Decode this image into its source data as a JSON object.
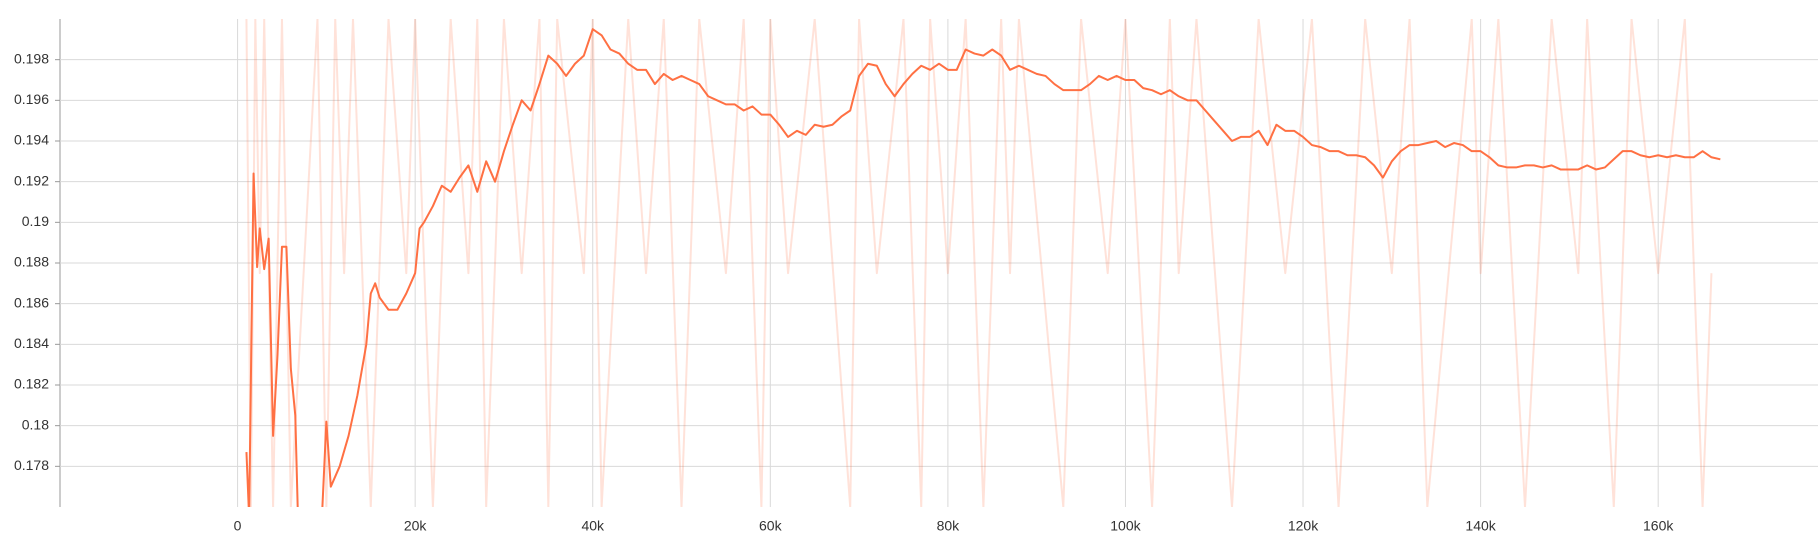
{
  "chart_data": {
    "type": "line",
    "xlim": [
      -20000,
      178000
    ],
    "ylim": [
      0.176,
      0.2
    ],
    "xticks": [
      {
        "value": 0,
        "label": "0"
      },
      {
        "value": 20000,
        "label": "20k"
      },
      {
        "value": 40000,
        "label": "40k"
      },
      {
        "value": 60000,
        "label": "60k"
      },
      {
        "value": 80000,
        "label": "80k"
      },
      {
        "value": 100000,
        "label": "100k"
      },
      {
        "value": 120000,
        "label": "120k"
      },
      {
        "value": 140000,
        "label": "140k"
      },
      {
        "value": 160000,
        "label": "160k"
      }
    ],
    "yticks": [
      0.178,
      0.18,
      0.182,
      0.184,
      0.186,
      0.188,
      0.19,
      0.192,
      0.194,
      0.196,
      0.198
    ],
    "grid": true,
    "series": [
      {
        "color": "#ff7043",
        "opacity": 0.2,
        "x": [
          1000,
          1500,
          2000,
          2500,
          3000,
          4000,
          5000,
          6000,
          9000,
          10000,
          11000,
          12000,
          13000,
          15000,
          17000,
          19000,
          20000,
          22000,
          24000,
          26000,
          27000,
          28000,
          30000,
          32000,
          34000,
          35000,
          36000,
          39000,
          40000,
          41000,
          44000,
          46000,
          48000,
          50000,
          52000,
          55000,
          57000,
          59000,
          60000,
          62000,
          65000,
          69000,
          70000,
          72000,
          75000,
          77000,
          78000,
          80000,
          82000,
          84000,
          86000,
          87000,
          88000,
          93000,
          95000,
          98000,
          100000,
          103000,
          105000,
          106000,
          108000,
          112000,
          115000,
          118000,
          121000,
          124000,
          127000,
          130000,
          132000,
          134000,
          139000,
          140000,
          142000,
          145000,
          148000,
          151000,
          152000,
          155000,
          157000,
          160000,
          163000,
          165000,
          166000
        ],
        "values": [
          0.2,
          0.176,
          0.2,
          0.1875,
          0.2,
          0.176,
          0.2,
          0.176,
          0.2,
          0.176,
          0.2,
          0.1875,
          0.2,
          0.176,
          0.2,
          0.1875,
          0.2,
          0.176,
          0.2,
          0.1875,
          0.2,
          0.176,
          0.2,
          0.1875,
          0.2,
          0.176,
          0.2,
          0.1875,
          0.2,
          0.176,
          0.2,
          0.1875,
          0.2,
          0.176,
          0.2,
          0.1875,
          0.2,
          0.176,
          0.2,
          0.1875,
          0.2,
          0.176,
          0.2,
          0.1875,
          0.2,
          0.176,
          0.2,
          0.1875,
          0.2,
          0.176,
          0.2,
          0.1875,
          0.2,
          0.176,
          0.2,
          0.1875,
          0.2,
          0.176,
          0.2,
          0.1875,
          0.2,
          0.176,
          0.2,
          0.1875,
          0.2,
          0.176,
          0.2,
          0.1875,
          0.2,
          0.176,
          0.2,
          0.1875,
          0.2,
          0.176,
          0.2,
          0.1875,
          0.2,
          0.176,
          0.2,
          0.1875,
          0.2,
          0.176,
          0.1875
        ]
      },
      {
        "color": "#ff7043",
        "opacity": 1,
        "x": [
          1000,
          1300,
          1800,
          2200,
          2500,
          3000,
          3500,
          4000,
          4500,
          5000,
          5500,
          6000,
          6500,
          6800,
          9500,
          10000,
          10500,
          11500,
          12500,
          13500,
          14500,
          15000,
          15500,
          16000,
          17000,
          18000,
          19000,
          20000,
          20500,
          21000,
          22000,
          23000,
          24000,
          25000,
          26000,
          27000,
          28000,
          29000,
          30000,
          31000,
          32000,
          33000,
          34000,
          35000,
          36000,
          37000,
          38000,
          39000,
          40000,
          41000,
          42000,
          43000,
          44000,
          45000,
          46000,
          47000,
          48000,
          49000,
          50000,
          51000,
          52000,
          53000,
          54000,
          55000,
          56000,
          57000,
          58000,
          59000,
          60000,
          61000,
          62000,
          63000,
          64000,
          65000,
          66000,
          67000,
          68000,
          69000,
          70000,
          71000,
          72000,
          73000,
          74000,
          75000,
          76000,
          77000,
          78000,
          79000,
          80000,
          81000,
          82000,
          83000,
          84000,
          85000,
          86000,
          87000,
          88000,
          89000,
          90000,
          91000,
          92000,
          93000,
          94000,
          95000,
          96000,
          97000,
          98000,
          99000,
          100000,
          101000,
          102000,
          103000,
          104000,
          105000,
          106000,
          107000,
          108000,
          109000,
          110000,
          111000,
          112000,
          113000,
          114000,
          115000,
          116000,
          117000,
          118000,
          119000,
          120000,
          121000,
          122000,
          123000,
          124000,
          125000,
          126000,
          127000,
          128000,
          129000,
          130000,
          131000,
          132000,
          133000,
          134000,
          135000,
          136000,
          137000,
          138000,
          139000,
          140000,
          141000,
          142000,
          143000,
          144000,
          145000,
          146000,
          147000,
          148000,
          149000,
          150000,
          151000,
          152000,
          153000,
          154000,
          155000,
          156000,
          157000,
          158000,
          159000,
          160000,
          161000,
          162000,
          163000,
          164000,
          165000,
          166000,
          167000
        ],
        "values": [
          0.1787,
          0.1755,
          0.1924,
          0.1878,
          0.1897,
          0.1877,
          0.1892,
          0.1795,
          0.1835,
          0.1888,
          0.1888,
          0.1828,
          0.1805,
          0.1755,
          0.1755,
          0.1802,
          0.177,
          0.178,
          0.1795,
          0.1815,
          0.184,
          0.1865,
          0.187,
          0.1863,
          0.1857,
          0.1857,
          0.1865,
          0.1875,
          0.1897,
          0.19,
          0.1908,
          0.1918,
          0.1915,
          0.1922,
          0.1928,
          0.1915,
          0.193,
          0.192,
          0.1935,
          0.1948,
          0.196,
          0.1955,
          0.1968,
          0.1982,
          0.1978,
          0.1972,
          0.1978,
          0.1982,
          0.1995,
          0.1992,
          0.1985,
          0.1983,
          0.1978,
          0.1975,
          0.1975,
          0.1968,
          0.1973,
          0.197,
          0.1972,
          0.197,
          0.1968,
          0.1962,
          0.196,
          0.1958,
          0.1958,
          0.1955,
          0.1957,
          0.1953,
          0.1953,
          0.1948,
          0.1942,
          0.1945,
          0.1943,
          0.1948,
          0.1947,
          0.1948,
          0.1952,
          0.1955,
          0.1972,
          0.1978,
          0.1977,
          0.1968,
          0.1962,
          0.1968,
          0.1973,
          0.1977,
          0.1975,
          0.1978,
          0.1975,
          0.1975,
          0.1985,
          0.1983,
          0.1982,
          0.1985,
          0.1982,
          0.1975,
          0.1977,
          0.1975,
          0.1973,
          0.1972,
          0.1968,
          0.1965,
          0.1965,
          0.1965,
          0.1968,
          0.1972,
          0.197,
          0.1972,
          0.197,
          0.197,
          0.1966,
          0.1965,
          0.1963,
          0.1965,
          0.1962,
          0.196,
          0.196,
          0.1955,
          0.195,
          0.1945,
          0.194,
          0.1942,
          0.1942,
          0.1945,
          0.1938,
          0.1948,
          0.1945,
          0.1945,
          0.1942,
          0.1938,
          0.1937,
          0.1935,
          0.1935,
          0.1933,
          0.1933,
          0.1932,
          0.1928,
          0.1922,
          0.193,
          0.1935,
          0.1938,
          0.1938,
          0.1939,
          0.194,
          0.1937,
          0.1939,
          0.1938,
          0.1935,
          0.1935,
          0.1932,
          0.1928,
          0.1927,
          0.1927,
          0.1928,
          0.1928,
          0.1927,
          0.1928,
          0.1926,
          0.1926,
          0.1926,
          0.1928,
          0.1926,
          0.1927,
          0.1931,
          0.1935,
          0.1935,
          0.1933,
          0.1932,
          0.1933,
          0.1932,
          0.1933,
          0.1932,
          0.1932,
          0.1935,
          0.1932,
          0.1931
        ]
      }
    ]
  }
}
